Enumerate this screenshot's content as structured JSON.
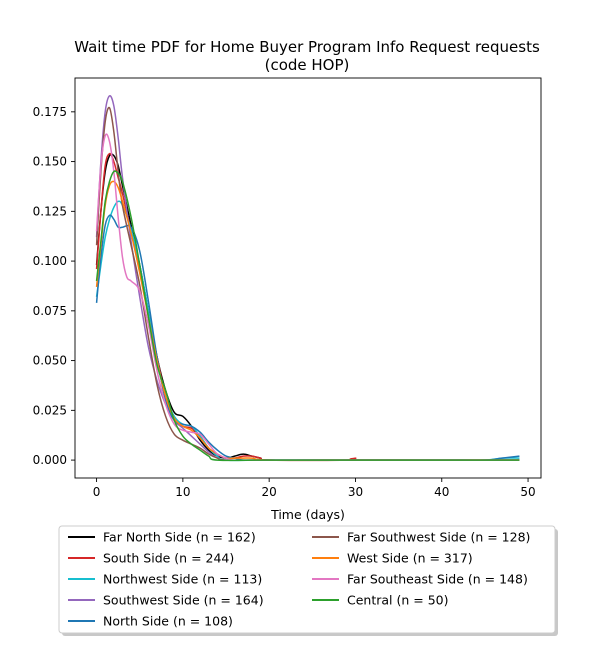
{
  "chart_data": {
    "type": "line",
    "title": "Wait time PDF for Home Buyer Program Info Request  requests",
    "subtitle": "(code HOP)",
    "xlabel": "Time (days)",
    "ylabel": "",
    "xlim": [
      -2.5,
      51.5
    ],
    "ylim": [
      -0.009,
      0.192
    ],
    "xticks": [
      0,
      10,
      20,
      30,
      40,
      50
    ],
    "xtick_labels": [
      "0",
      "10",
      "20",
      "30",
      "40",
      "50"
    ],
    "yticks": [
      0.0,
      0.025,
      0.05,
      0.075,
      0.1,
      0.125,
      0.15,
      0.175
    ],
    "ytick_labels": [
      "0.000",
      "0.025",
      "0.050",
      "0.075",
      "0.100",
      "0.125",
      "0.150",
      "0.175"
    ],
    "grid": false,
    "legend_placement": "below plot, two columns",
    "series": [
      {
        "name": "Far North Side (n = 162)",
        "color": "#000000",
        "points": [
          [
            0,
            0.098
          ],
          [
            0.5,
            0.125
          ],
          [
            1,
            0.145
          ],
          [
            1.5,
            0.153
          ],
          [
            2,
            0.153
          ],
          [
            2.5,
            0.148
          ],
          [
            3,
            0.138
          ],
          [
            4,
            0.118
          ],
          [
            5,
            0.098
          ],
          [
            6,
            0.075
          ],
          [
            7,
            0.052
          ],
          [
            8,
            0.035
          ],
          [
            9,
            0.024
          ],
          [
            10,
            0.022
          ],
          [
            11,
            0.017
          ],
          [
            12,
            0.01
          ],
          [
            13,
            0.005
          ],
          [
            14,
            0.002
          ],
          [
            15,
            0.001
          ],
          [
            16,
            0.002
          ],
          [
            17,
            0.003
          ],
          [
            18,
            0.002
          ],
          [
            19,
            0.001
          ],
          [
            20,
            0.0
          ],
          [
            30,
            0.0
          ],
          [
            40,
            0.0
          ],
          [
            49,
            0.0
          ]
        ]
      },
      {
        "name": "South Side (n = 244)",
        "color": "#d62728",
        "points": [
          [
            0,
            0.096
          ],
          [
            0.5,
            0.125
          ],
          [
            1,
            0.148
          ],
          [
            1.5,
            0.154
          ],
          [
            2,
            0.15
          ],
          [
            2.5,
            0.142
          ],
          [
            3,
            0.134
          ],
          [
            4,
            0.115
          ],
          [
            5,
            0.096
          ],
          [
            6,
            0.073
          ],
          [
            7,
            0.052
          ],
          [
            8,
            0.032
          ],
          [
            9,
            0.02
          ],
          [
            10,
            0.017
          ],
          [
            11,
            0.016
          ],
          [
            12,
            0.012
          ],
          [
            13,
            0.006
          ],
          [
            14,
            0.003
          ],
          [
            15,
            0.001
          ],
          [
            16,
            0.001
          ],
          [
            17,
            0.002
          ],
          [
            18,
            0.002
          ],
          [
            19,
            0.001
          ],
          [
            20,
            0.0
          ],
          [
            29,
            0.0
          ],
          [
            30,
            0.001
          ],
          [
            31,
            0.0
          ],
          [
            49,
            0.0
          ]
        ]
      },
      {
        "name": "Northwest Side (n = 113)",
        "color": "#17becf",
        "points": [
          [
            0,
            0.082
          ],
          [
            0.5,
            0.098
          ],
          [
            1,
            0.112
          ],
          [
            1.5,
            0.121
          ],
          [
            2,
            0.127
          ],
          [
            2.5,
            0.13
          ],
          [
            3,
            0.128
          ],
          [
            4,
            0.116
          ],
          [
            5,
            0.098
          ],
          [
            6,
            0.075
          ],
          [
            7,
            0.05
          ],
          [
            8,
            0.032
          ],
          [
            9,
            0.022
          ],
          [
            10,
            0.018
          ],
          [
            11,
            0.017
          ],
          [
            12,
            0.012
          ],
          [
            13,
            0.006
          ],
          [
            14,
            0.002
          ],
          [
            15,
            0.0
          ],
          [
            20,
            0.0
          ],
          [
            30,
            0.0
          ],
          [
            40,
            0.0
          ],
          [
            45,
            0.0
          ],
          [
            47,
            0.001
          ],
          [
            49,
            0.001
          ]
        ]
      },
      {
        "name": "Southwest Side (n = 164)",
        "color": "#9467bd",
        "points": [
          [
            0,
            0.112
          ],
          [
            0.5,
            0.15
          ],
          [
            1,
            0.175
          ],
          [
            1.5,
            0.183
          ],
          [
            2,
            0.178
          ],
          [
            2.5,
            0.162
          ],
          [
            3,
            0.142
          ],
          [
            4,
            0.11
          ],
          [
            5,
            0.082
          ],
          [
            6,
            0.057
          ],
          [
            7,
            0.04
          ],
          [
            8,
            0.028
          ],
          [
            9,
            0.02
          ],
          [
            10,
            0.016
          ],
          [
            11,
            0.012
          ],
          [
            12,
            0.008
          ],
          [
            13,
            0.004
          ],
          [
            14,
            0.001
          ],
          [
            15,
            0.0
          ],
          [
            20,
            0.0
          ],
          [
            30,
            0.0
          ],
          [
            40,
            0.0
          ],
          [
            49,
            0.0
          ]
        ]
      },
      {
        "name": "North Side (n = 108)",
        "color": "#1f77b4",
        "points": [
          [
            0,
            0.079
          ],
          [
            0.5,
            0.102
          ],
          [
            1,
            0.118
          ],
          [
            1.5,
            0.123
          ],
          [
            2,
            0.121
          ],
          [
            2.5,
            0.117
          ],
          [
            3,
            0.117
          ],
          [
            4,
            0.117
          ],
          [
            5,
            0.105
          ],
          [
            6,
            0.08
          ],
          [
            7,
            0.052
          ],
          [
            8,
            0.03
          ],
          [
            9,
            0.02
          ],
          [
            10,
            0.018
          ],
          [
            11,
            0.017
          ],
          [
            12,
            0.014
          ],
          [
            13,
            0.009
          ],
          [
            14,
            0.005
          ],
          [
            15,
            0.002
          ],
          [
            16,
            0.001
          ],
          [
            17,
            0.0
          ],
          [
            20,
            0.0
          ],
          [
            30,
            0.0
          ],
          [
            40,
            0.0
          ],
          [
            45,
            0.0
          ],
          [
            47,
            0.001
          ],
          [
            49,
            0.002
          ]
        ]
      },
      {
        "name": "Far Southwest Side (n = 128)",
        "color": "#8c564b",
        "points": [
          [
            0,
            0.108
          ],
          [
            0.5,
            0.145
          ],
          [
            1,
            0.17
          ],
          [
            1.5,
            0.177
          ],
          [
            2,
            0.165
          ],
          [
            2.5,
            0.145
          ],
          [
            3,
            0.128
          ],
          [
            4,
            0.108
          ],
          [
            5,
            0.088
          ],
          [
            6,
            0.062
          ],
          [
            7,
            0.038
          ],
          [
            8,
            0.022
          ],
          [
            9,
            0.013
          ],
          [
            10,
            0.01
          ],
          [
            11,
            0.008
          ],
          [
            12,
            0.006
          ],
          [
            13,
            0.003
          ],
          [
            14,
            0.001
          ],
          [
            15,
            0.0
          ],
          [
            20,
            0.0
          ],
          [
            30,
            0.0
          ],
          [
            40,
            0.0
          ],
          [
            49,
            0.0
          ]
        ]
      },
      {
        "name": "West Side (n = 317)",
        "color": "#ff7f0e",
        "points": [
          [
            0,
            0.087
          ],
          [
            0.5,
            0.108
          ],
          [
            1,
            0.128
          ],
          [
            1.5,
            0.138
          ],
          [
            2,
            0.14
          ],
          [
            2.5,
            0.137
          ],
          [
            3,
            0.13
          ],
          [
            4,
            0.114
          ],
          [
            5,
            0.094
          ],
          [
            6,
            0.072
          ],
          [
            7,
            0.05
          ],
          [
            8,
            0.032
          ],
          [
            9,
            0.021
          ],
          [
            10,
            0.017
          ],
          [
            11,
            0.015
          ],
          [
            12,
            0.011
          ],
          [
            13,
            0.006
          ],
          [
            14,
            0.003
          ],
          [
            15,
            0.001
          ],
          [
            16,
            0.001
          ],
          [
            17,
            0.001
          ],
          [
            18,
            0.001
          ],
          [
            20,
            0.0
          ],
          [
            30,
            0.0
          ],
          [
            40,
            0.0
          ],
          [
            49,
            0.0
          ]
        ]
      },
      {
        "name": "Far Southeast Side (n = 148)",
        "color": "#e377c2",
        "points": [
          [
            0,
            0.115
          ],
          [
            0.5,
            0.148
          ],
          [
            1,
            0.163
          ],
          [
            1.5,
            0.16
          ],
          [
            2,
            0.145
          ],
          [
            2.5,
            0.122
          ],
          [
            3,
            0.102
          ],
          [
            3.5,
            0.092
          ],
          [
            4,
            0.09
          ],
          [
            5,
            0.085
          ],
          [
            6,
            0.068
          ],
          [
            7,
            0.045
          ],
          [
            8,
            0.028
          ],
          [
            9,
            0.018
          ],
          [
            10,
            0.015
          ],
          [
            11,
            0.014
          ],
          [
            12,
            0.013
          ],
          [
            13,
            0.008
          ],
          [
            14,
            0.003
          ],
          [
            15,
            0.001
          ],
          [
            16,
            0.0
          ],
          [
            20,
            0.0
          ],
          [
            30,
            0.0
          ],
          [
            40,
            0.0
          ],
          [
            49,
            0.0
          ]
        ]
      },
      {
        "name": "Central (n = 50)",
        "color": "#2ca02c",
        "points": [
          [
            0,
            0.09
          ],
          [
            0.5,
            0.11
          ],
          [
            1,
            0.13
          ],
          [
            1.5,
            0.14
          ],
          [
            2,
            0.145
          ],
          [
            2.5,
            0.144
          ],
          [
            3,
            0.14
          ],
          [
            4,
            0.122
          ],
          [
            5,
            0.098
          ],
          [
            6,
            0.072
          ],
          [
            7,
            0.048
          ],
          [
            8,
            0.035
          ],
          [
            9,
            0.02
          ],
          [
            10,
            0.012
          ],
          [
            11,
            0.008
          ],
          [
            12,
            0.005
          ],
          [
            13,
            0.002
          ],
          [
            14,
            0.0
          ],
          [
            20,
            0.0
          ],
          [
            30,
            0.0
          ],
          [
            40,
            0.0
          ],
          [
            49,
            0.0
          ]
        ]
      }
    ]
  }
}
